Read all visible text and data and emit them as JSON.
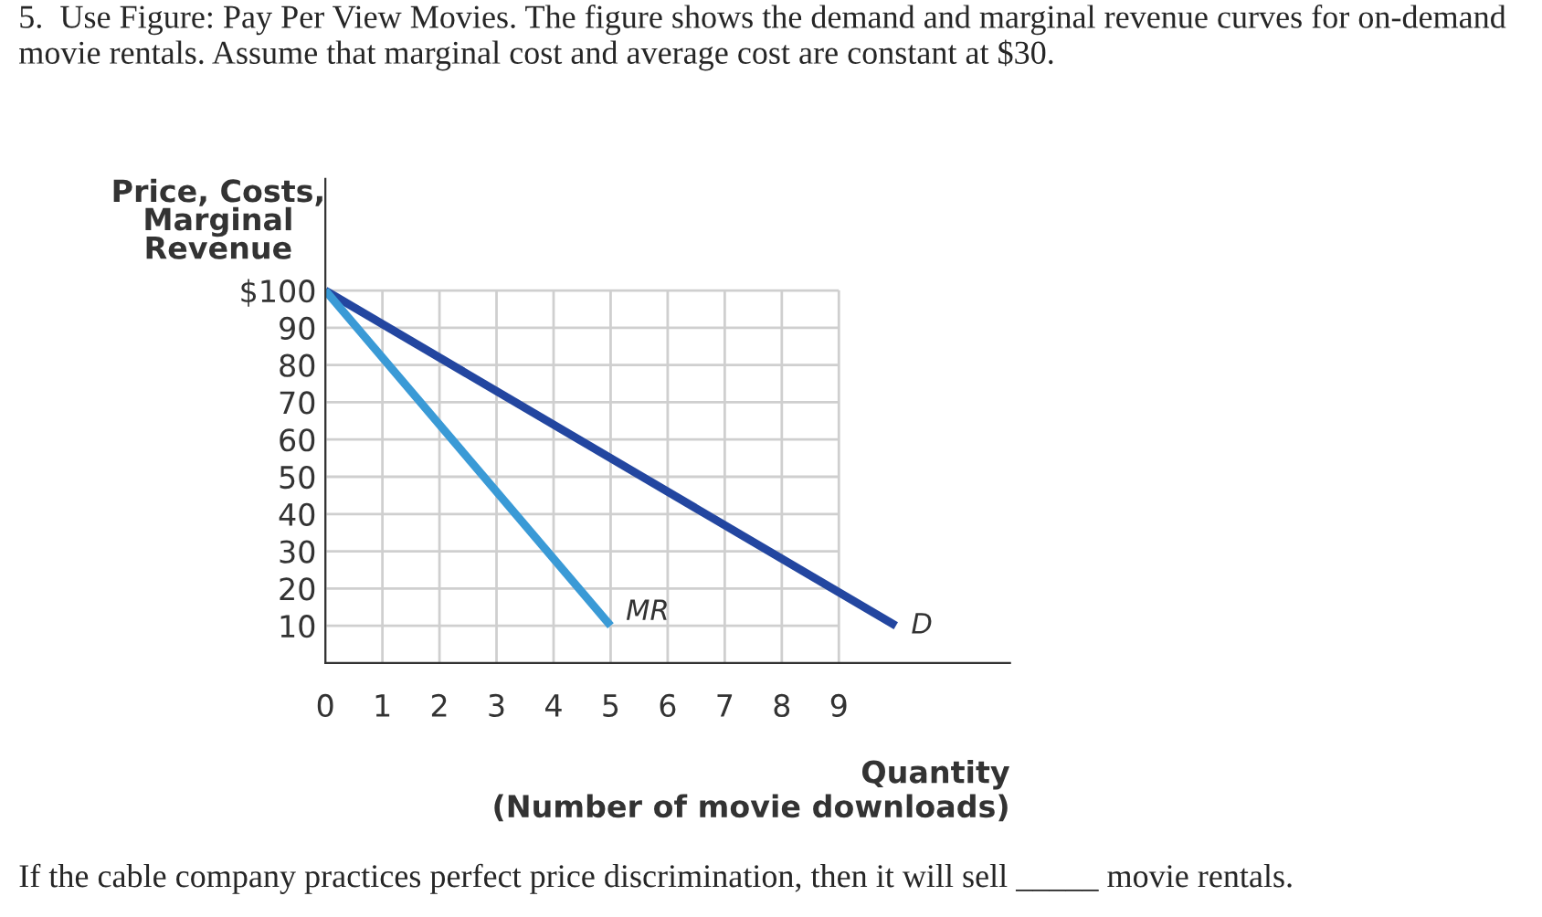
{
  "chart_data": {
    "type": "line",
    "title": "5.  Use Figure: Pay Per View Movies. The figure shows the demand and marginal revenue curves for on-demand movie rentals. Assume that marginal cost and average cost are constant at $30.",
    "xlabel": "Quantity\n(Number of movie downloads)",
    "ylabel": "Price, Costs,\nMarginal\nRevenue",
    "series": [
      {
        "name": "D",
        "color": "#2346a0",
        "x": [
          0,
          10
        ],
        "values": [
          100,
          10
        ]
      },
      {
        "name": "MR",
        "color": "#3a9ad6",
        "x": [
          0,
          5
        ],
        "values": [
          100,
          10
        ]
      }
    ],
    "xlim": [
      0,
      12
    ],
    "ylim": [
      0,
      130
    ],
    "xticks": [
      0,
      1,
      2,
      3,
      4,
      5,
      6,
      7,
      8,
      9
    ],
    "yticks": [
      10,
      20,
      30,
      40,
      50,
      60,
      70,
      80,
      90,
      {
        "value": 100,
        "label": "$100"
      }
    ],
    "grid": true,
    "legend": false,
    "marker": "none",
    "line_style": "solid",
    "annotations": [
      "If the cable company practices perfect price discrimination, then it will sell _____ movie rentals."
    ]
  }
}
